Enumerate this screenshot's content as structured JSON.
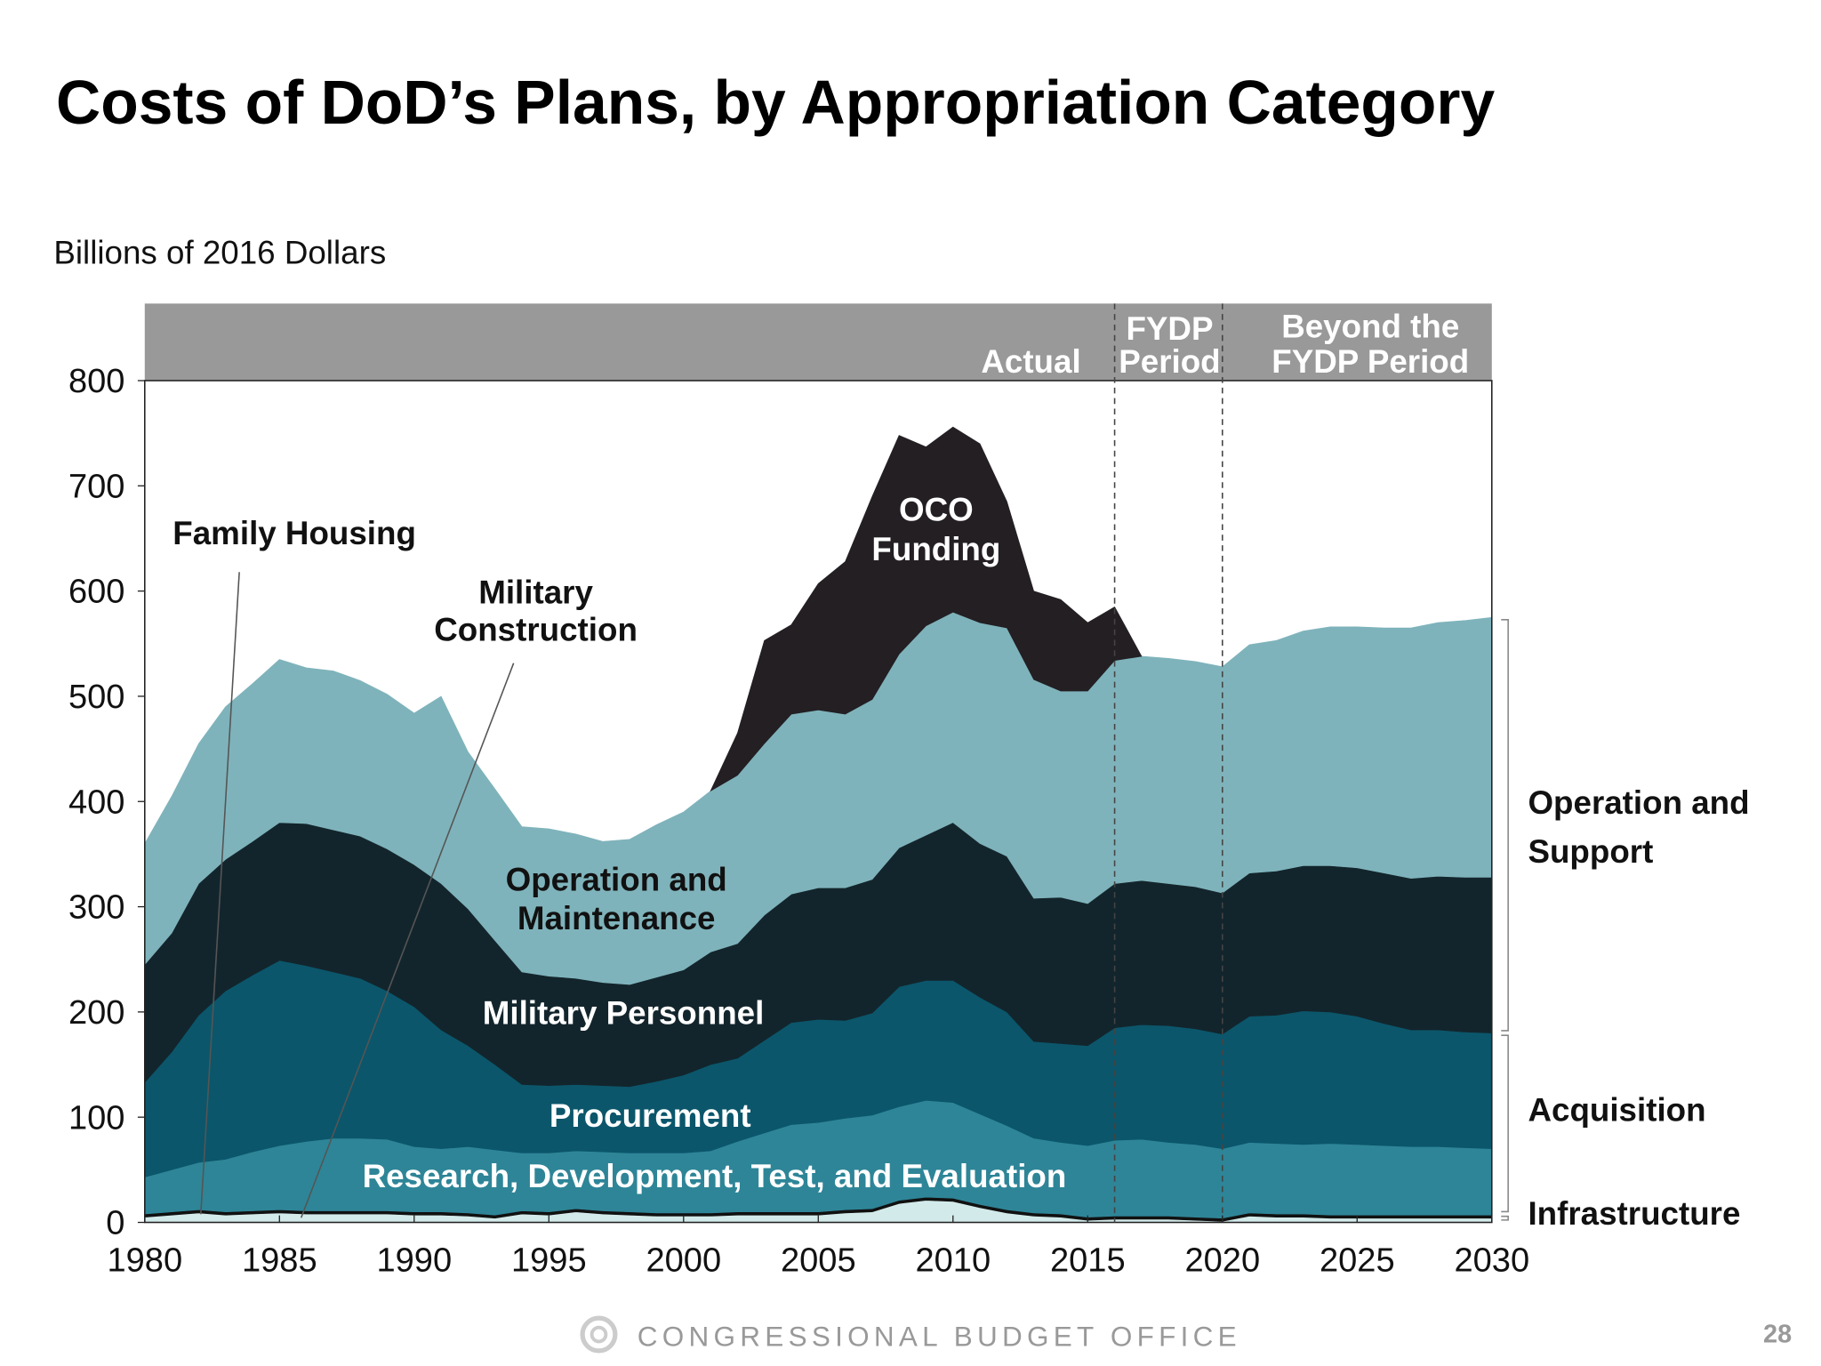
{
  "title": "Costs of DoD’s Plans, by Appropriation Category",
  "footer": {
    "org": "CONGRESSIONAL BUDGET OFFICE",
    "page_number": "28"
  },
  "chart_data": {
    "type": "area",
    "stacked": true,
    "title": "Costs of DoD’s Plans, by Appropriation Category",
    "ylabel": "Billions of 2016 Dollars",
    "xlabel": "",
    "xlim": [
      1980,
      2030
    ],
    "ylim": [
      0,
      800
    ],
    "grid": false,
    "x_ticks": [
      "1980",
      "1985",
      "1990",
      "1995",
      "2000",
      "2005",
      "2010",
      "2015",
      "2020",
      "2025",
      "2030"
    ],
    "y_ticks": [
      "0",
      "100",
      "200",
      "300",
      "400",
      "500",
      "600",
      "700",
      "800"
    ],
    "periods": [
      {
        "label": "Actual",
        "end": 2016
      },
      {
        "label_lines": [
          "FYDP",
          "Period"
        ],
        "start": 2016,
        "end": 2020
      },
      {
        "label_lines": [
          "Beyond the",
          "FYDP Period"
        ],
        "start": 2020,
        "end": 2030
      }
    ],
    "years_start": 1980,
    "series": [
      {
        "name": "Military Construction",
        "label_lines": [
          "Military",
          "Construction"
        ],
        "color": "#d3eaea",
        "values": [
          5,
          7,
          9,
          7,
          8,
          9,
          8,
          8,
          8,
          8,
          7,
          7,
          6,
          4,
          8,
          7,
          10,
          8,
          7,
          6,
          6,
          6,
          7,
          7,
          7,
          7,
          9,
          10,
          18,
          21,
          20,
          14,
          9,
          6,
          5,
          2,
          3,
          3,
          3,
          2,
          1,
          6,
          5,
          5,
          4,
          4,
          4,
          4,
          4,
          4,
          4
        ]
      },
      {
        "name": "Family Housing",
        "label_lines": [
          "Family Housing"
        ],
        "color": "#111111",
        "values": [
          3,
          3,
          3,
          3,
          3,
          3,
          3,
          3,
          3,
          3,
          3,
          3,
          3,
          3,
          3,
          3,
          3,
          3,
          3,
          3,
          3,
          3,
          3,
          3,
          3,
          3,
          3,
          3,
          3,
          3,
          3,
          3,
          3,
          3,
          3,
          3,
          3,
          3,
          3,
          3,
          3,
          3,
          3,
          3,
          3,
          3,
          3,
          3,
          3,
          3,
          3
        ]
      },
      {
        "name": "Research, Development, Test, and Evaluation",
        "label_lines": [
          "Research, Development, Test, and Evaluation"
        ],
        "color": "#2e8597",
        "values": [
          35,
          40,
          45,
          50,
          56,
          61,
          66,
          69,
          69,
          68,
          62,
          60,
          63,
          62,
          55,
          56,
          55,
          56,
          56,
          57,
          57,
          59,
          67,
          75,
          83,
          85,
          87,
          89,
          89,
          92,
          91,
          86,
          80,
          71,
          68,
          68,
          72,
          73,
          70,
          69,
          66,
          67,
          67,
          66,
          68,
          67,
          66,
          65,
          65,
          64,
          63
        ]
      },
      {
        "name": "Procurement",
        "label_lines": [
          "Procurement"
        ],
        "color": "#0b566b",
        "values": [
          90,
          112,
          140,
          160,
          168,
          176,
          167,
          158,
          152,
          141,
          133,
          113,
          96,
          81,
          65,
          64,
          63,
          63,
          63,
          68,
          74,
          82,
          79,
          88,
          97,
          98,
          93,
          97,
          114,
          114,
          116,
          111,
          108,
          92,
          94,
          95,
          107,
          109,
          111,
          110,
          109,
          120,
          122,
          127,
          125,
          122,
          116,
          111,
          111,
          110,
          110
        ]
      },
      {
        "name": "Military Personnel",
        "label_lines": [
          "Military Personnel"
        ],
        "color": "#13252c",
        "values": [
          112,
          113,
          125,
          125,
          127,
          131,
          135,
          135,
          135,
          135,
          135,
          139,
          130,
          118,
          107,
          104,
          101,
          98,
          97,
          99,
          100,
          107,
          109,
          119,
          122,
          125,
          126,
          127,
          132,
          138,
          150,
          146,
          148,
          136,
          139,
          135,
          137,
          137,
          135,
          135,
          134,
          136,
          137,
          138,
          139,
          141,
          143,
          144,
          146,
          147,
          148
        ]
      },
      {
        "name": "Operation and Maintenance",
        "label_lines": [
          "Operation and",
          "Maintenance"
        ],
        "color": "#7fb3bb",
        "values": [
          115,
          130,
          133,
          145,
          150,
          155,
          148,
          151,
          148,
          147,
          144,
          178,
          149,
          144,
          138,
          140,
          137,
          134,
          138,
          145,
          150,
          153,
          160,
          163,
          171,
          169,
          165,
          171,
          184,
          199,
          200,
          210,
          217,
          208,
          196,
          202,
          212,
          213,
          214,
          214,
          215,
          217,
          219,
          223,
          227,
          229,
          233,
          238,
          241,
          244,
          247
        ]
      },
      {
        "name": "OCO Funding",
        "label_lines": [
          "OCO",
          "Funding"
        ],
        "color": "#231f23",
        "values": [
          0,
          0,
          0,
          0,
          0,
          0,
          0,
          0,
          0,
          0,
          0,
          0,
          0,
          0,
          0,
          0,
          0,
          0,
          0,
          0,
          0,
          0,
          40,
          98,
          85,
          120,
          145,
          193,
          208,
          170,
          176,
          170,
          120,
          84,
          87,
          65,
          51,
          0,
          0,
          0,
          0,
          0,
          0,
          0,
          0,
          0,
          0,
          0,
          0,
          0,
          0
        ]
      }
    ],
    "groups": [
      {
        "label_lines": [
          "Operation and",
          "Support"
        ],
        "range": [
          180,
          575
        ]
      },
      {
        "label_lines": [
          "Acquisition"
        ],
        "range": [
          8,
          180
        ]
      },
      {
        "label_lines": [
          "Infrastructure"
        ],
        "range": [
          0,
          8
        ]
      }
    ]
  }
}
